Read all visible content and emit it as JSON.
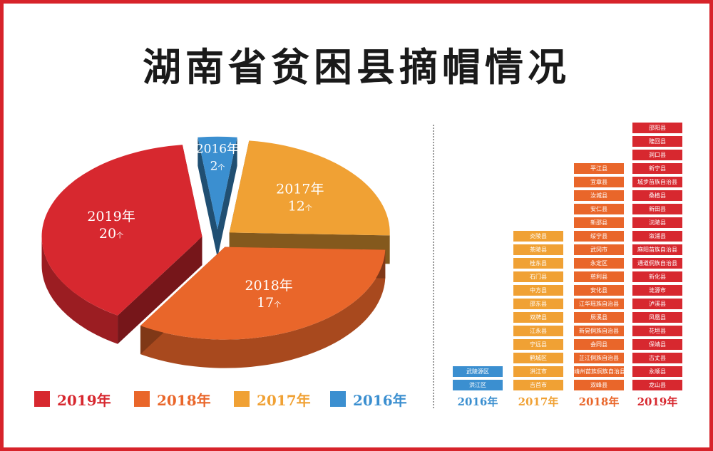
{
  "title": "湖南省贫困县摘帽情况",
  "colors": {
    "y2019": "#d7282f",
    "y2018": "#e9662a",
    "y2017": "#f0a134",
    "y2016": "#3b8fd0",
    "border": "#d7232a"
  },
  "chart_data": [
    {
      "type": "pie",
      "slices": [
        {
          "year": "2019年",
          "value": 20,
          "count_text": "20",
          "unit": "个",
          "color": "#d7282f"
        },
        {
          "year": "2018年",
          "value": 17,
          "count_text": "17",
          "unit": "个",
          "color": "#e9662a"
        },
        {
          "year": "2017年",
          "value": 12,
          "count_text": "12",
          "unit": "个",
          "color": "#f0a134"
        },
        {
          "year": "2016年",
          "value": 2,
          "count_text": "2",
          "unit": "个",
          "color": "#3b8fd0"
        }
      ],
      "legend": [
        "2019年",
        "2018年",
        "2017年",
        "2016年"
      ],
      "legend_position": "bottom"
    },
    {
      "type": "table",
      "columns": [
        {
          "year": "2016年",
          "color": "#3b8fd0",
          "counties": [
            "武陵源区",
            "洪江区"
          ]
        },
        {
          "year": "2017年",
          "color": "#f0a134",
          "counties": [
            "炎陵县",
            "茶陵县",
            "桂东县",
            "石门县",
            "中方县",
            "邵东县",
            "双牌县",
            "江永县",
            "宁远县",
            "鹤城区",
            "洪江市",
            "吉首市"
          ]
        },
        {
          "year": "2018年",
          "color": "#e9662a",
          "counties": [
            "平江县",
            "宜章县",
            "汝城县",
            "安仁县",
            "新邵县",
            "绥宁县",
            "武冈市",
            "永定区",
            "慈利县",
            "安化县",
            "江华瑶族自治县",
            "辰溪县",
            "新晃侗族自治县",
            "会同县",
            "芷江侗族自治县",
            "靖州苗族侗族自治县",
            "双峰县"
          ]
        },
        {
          "year": "2019年",
          "color": "#d7282f",
          "counties": [
            "邵阳县",
            "隆回县",
            "洞口县",
            "新宁县",
            "城步苗族自治县",
            "桑植县",
            "新田县",
            "沅陵县",
            "溆浦县",
            "麻阳苗族自治县",
            "通道侗族自治县",
            "新化县",
            "涟源市",
            "泸溪县",
            "凤凰县",
            "花垣县",
            "保靖县",
            "古丈县",
            "永顺县",
            "龙山县"
          ]
        }
      ]
    }
  ]
}
